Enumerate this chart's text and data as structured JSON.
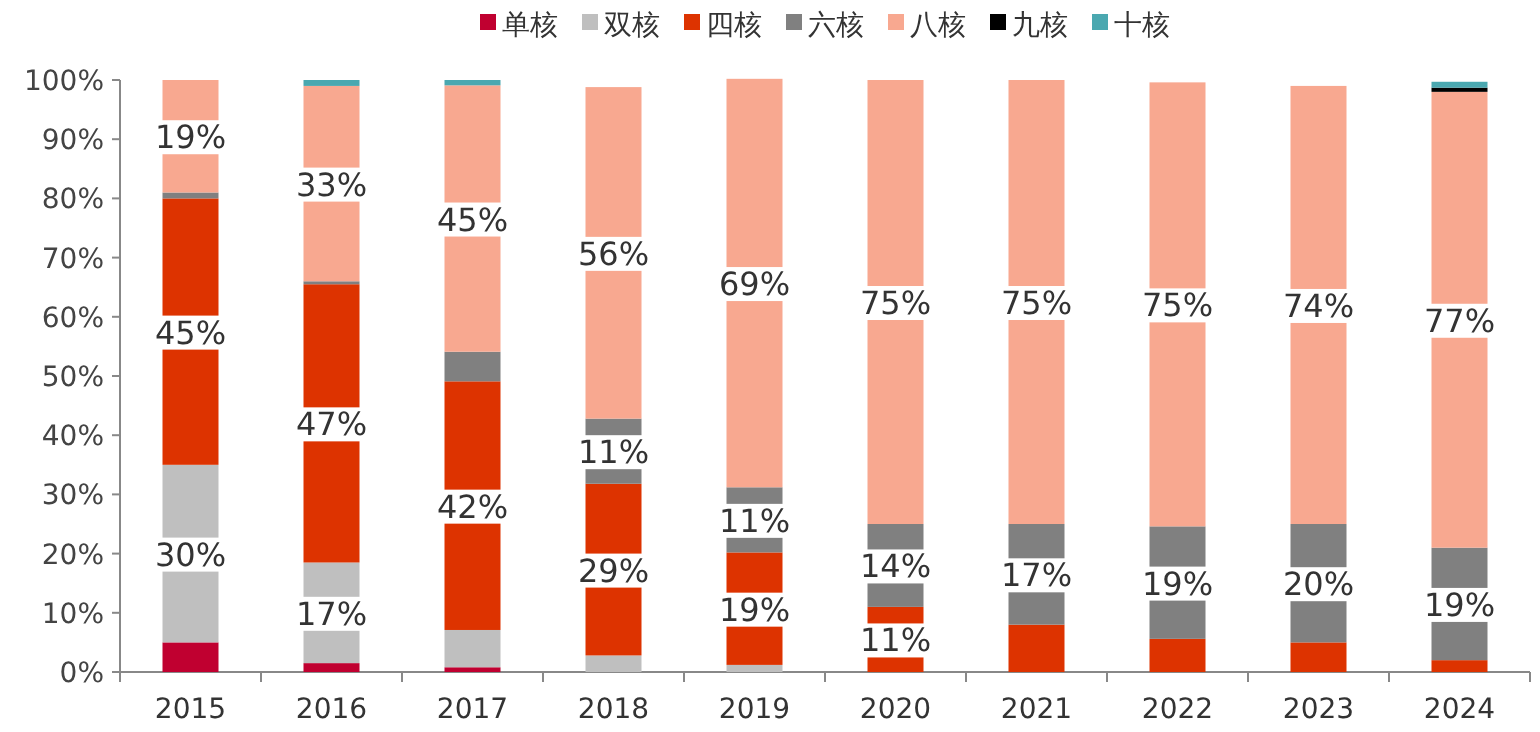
{
  "chart_data": {
    "type": "bar",
    "stacked": true,
    "legend": "top",
    "categories": [
      "2015",
      "2016",
      "2017",
      "2018",
      "2019",
      "2020",
      "2021",
      "2022",
      "2023",
      "2024"
    ],
    "ylim": [
      0,
      100
    ],
    "yticks": [
      {
        "value": 0,
        "label": "0%"
      },
      {
        "value": 10,
        "label": "10%"
      },
      {
        "value": 20,
        "label": "20%"
      },
      {
        "value": 30,
        "label": "30%"
      },
      {
        "value": 40,
        "label": "40%"
      },
      {
        "value": 50,
        "label": "50%"
      },
      {
        "value": 60,
        "label": "60%"
      },
      {
        "value": 70,
        "label": "70%"
      },
      {
        "value": 80,
        "label": "80%"
      },
      {
        "value": 90,
        "label": "90%"
      },
      {
        "value": 100,
        "label": "100%"
      }
    ],
    "series": [
      {
        "name": "单核",
        "color": "#c00030",
        "values": [
          5,
          1.5,
          0.8,
          null,
          null,
          null,
          null,
          null,
          null,
          null
        ]
      },
      {
        "name": "双核",
        "color": "#bfbfbf",
        "values": [
          30,
          17,
          6.3,
          2.8,
          1.2,
          null,
          null,
          null,
          null,
          null
        ],
        "value_labels": [
          "30%",
          "17%",
          null,
          null,
          null,
          null,
          null,
          null,
          null,
          null
        ]
      },
      {
        "name": "四核",
        "color": "#dd3300",
        "values": [
          45,
          47,
          42,
          29,
          19,
          11,
          8,
          5.6,
          5,
          2
        ],
        "value_labels": [
          "45%",
          "47%",
          "42%",
          "29%",
          "19%",
          "11%",
          null,
          null,
          null,
          null
        ]
      },
      {
        "name": "六核",
        "color": "#808080",
        "values": [
          1,
          0.5,
          5,
          11,
          11,
          14,
          17,
          19,
          20,
          19
        ],
        "value_labels": [
          null,
          null,
          null,
          "11%",
          "11%",
          "14%",
          "17%",
          "19%",
          "20%",
          "19%"
        ]
      },
      {
        "name": "八核",
        "color": "#f8a890",
        "values": [
          19,
          33,
          45,
          56,
          69,
          75,
          75,
          75,
          74,
          77
        ],
        "value_labels": [
          "19%",
          "33%",
          "45%",
          "56%",
          "69%",
          "75%",
          "75%",
          "75%",
          "74%",
          "77%"
        ]
      },
      {
        "name": "九核",
        "color": "#000000",
        "values": [
          null,
          null,
          null,
          null,
          null,
          null,
          null,
          null,
          null,
          0.7
        ]
      },
      {
        "name": "十核",
        "color": "#4aa8b0",
        "values": [
          null,
          1,
          0.9,
          null,
          null,
          null,
          null,
          null,
          null,
          1
        ]
      }
    ]
  }
}
